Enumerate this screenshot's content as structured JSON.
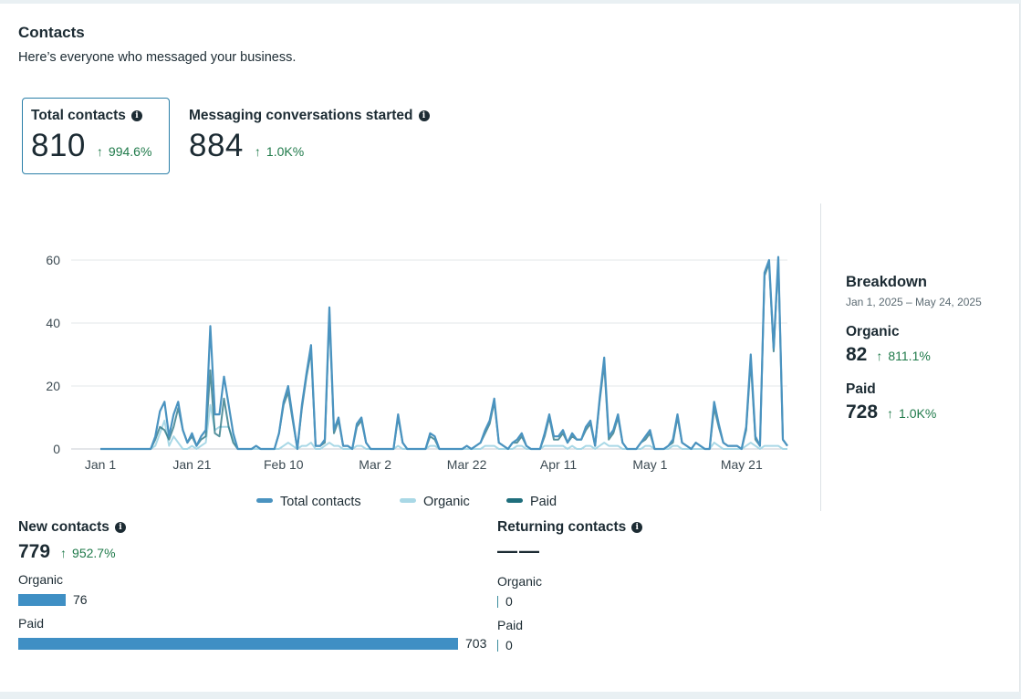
{
  "header": {
    "title": "Contacts",
    "subtitle": "Here’s everyone who messaged your business."
  },
  "metrics": {
    "total_contacts": {
      "label": "Total contacts",
      "value": "810",
      "delta": "994.6%"
    },
    "messaging": {
      "label": "Messaging conversations started",
      "value": "884",
      "delta": "1.0K%"
    }
  },
  "colors": {
    "total": "#4a93c0",
    "organic": "#a9d8e6",
    "paid": "#1f6e7c",
    "positive": "#1f7a4a"
  },
  "chart_data": {
    "type": "line",
    "x_tick_labels": [
      "Jan 1",
      "Jan 21",
      "Feb 10",
      "Mar 2",
      "Mar 22",
      "Apr 11",
      "May 1",
      "May 21"
    ],
    "x_tick_index": [
      0,
      20,
      40,
      60,
      80,
      100,
      120,
      140
    ],
    "y_ticks": [
      0,
      20,
      40,
      60
    ],
    "ylim": [
      0,
      60
    ],
    "x_start": "Jan 1",
    "x_end": "May 24",
    "legend_position": "bottom",
    "series": [
      {
        "name": "Total contacts",
        "key": "total",
        "values": [
          0,
          0,
          0,
          0,
          0,
          0,
          0,
          0,
          0,
          0,
          0,
          0,
          4,
          12,
          15,
          4,
          11,
          15,
          6,
          2,
          5,
          1,
          4,
          6,
          39,
          11,
          11,
          23,
          14,
          5,
          0,
          0,
          0,
          0,
          1,
          0,
          0,
          0,
          0,
          5,
          15,
          20,
          10,
          0,
          14,
          24,
          33,
          1,
          1,
          3,
          45,
          6,
          10,
          1,
          1,
          0,
          8,
          10,
          2,
          0,
          0,
          0,
          0,
          0,
          0,
          11,
          2,
          0,
          0,
          0,
          0,
          0,
          5,
          4,
          0,
          0,
          0,
          0,
          0,
          0,
          1,
          0,
          1,
          2,
          6,
          9,
          16,
          2,
          1,
          0,
          2,
          3,
          5,
          1,
          0,
          0,
          0,
          5,
          11,
          4,
          4,
          6,
          2,
          5,
          3,
          3,
          7,
          9,
          1,
          16,
          29,
          4,
          6,
          11,
          2,
          0,
          0,
          0,
          2,
          4,
          6,
          0,
          0,
          0,
          1,
          3,
          11,
          2,
          1,
          0,
          2,
          1,
          0,
          0,
          15,
          8,
          2,
          1,
          1,
          1,
          0,
          7,
          30,
          4,
          1,
          56,
          60,
          32,
          61,
          3,
          1
        ]
      },
      {
        "name": "Organic",
        "key": "organic",
        "values": [
          0,
          0,
          0,
          0,
          0,
          0,
          0,
          0,
          0,
          0,
          0,
          0,
          1,
          5,
          9,
          1,
          4,
          2,
          0,
          0,
          1,
          0,
          1,
          2,
          14,
          6,
          7,
          7,
          7,
          3,
          0,
          0,
          0,
          0,
          0,
          0,
          0,
          0,
          0,
          0,
          1,
          2,
          1,
          0,
          1,
          1,
          2,
          0,
          0,
          1,
          2,
          1,
          1,
          0,
          0,
          0,
          1,
          1,
          0,
          0,
          0,
          0,
          0,
          0,
          0,
          1,
          0,
          0,
          0,
          0,
          0,
          0,
          1,
          1,
          0,
          0,
          0,
          0,
          0,
          0,
          0,
          0,
          0,
          0,
          1,
          1,
          1,
          0,
          0,
          0,
          0,
          1,
          1,
          0,
          0,
          0,
          0,
          1,
          1,
          1,
          1,
          1,
          0,
          1,
          0,
          0,
          1,
          1,
          0,
          1,
          2,
          1,
          1,
          1,
          0,
          0,
          0,
          0,
          0,
          1,
          1,
          0,
          0,
          0,
          0,
          1,
          1,
          0,
          0,
          0,
          0,
          0,
          0,
          0,
          2,
          1,
          0,
          0,
          0,
          0,
          0,
          1,
          2,
          1,
          0,
          1,
          1,
          1,
          1,
          0,
          0
        ]
      },
      {
        "name": "Paid",
        "key": "paid",
        "values": [
          0,
          0,
          0,
          0,
          0,
          0,
          0,
          0,
          0,
          0,
          0,
          0,
          3,
          7,
          6,
          3,
          7,
          13,
          6,
          2,
          4,
          1,
          3,
          4,
          25,
          5,
          4,
          16,
          7,
          2,
          0,
          0,
          0,
          0,
          1,
          0,
          0,
          0,
          0,
          5,
          14,
          18,
          9,
          0,
          13,
          23,
          31,
          1,
          1,
          2,
          43,
          5,
          9,
          1,
          1,
          0,
          7,
          9,
          2,
          0,
          0,
          0,
          0,
          0,
          0,
          10,
          2,
          0,
          0,
          0,
          0,
          0,
          4,
          3,
          0,
          0,
          0,
          0,
          0,
          0,
          1,
          0,
          1,
          2,
          5,
          8,
          15,
          2,
          1,
          0,
          2,
          2,
          4,
          1,
          0,
          0,
          0,
          4,
          10,
          3,
          3,
          5,
          2,
          4,
          3,
          3,
          6,
          8,
          1,
          15,
          27,
          3,
          5,
          10,
          2,
          0,
          0,
          0,
          2,
          3,
          5,
          0,
          0,
          0,
          1,
          2,
          10,
          2,
          1,
          0,
          2,
          1,
          0,
          0,
          13,
          7,
          2,
          1,
          1,
          1,
          0,
          6,
          28,
          3,
          1,
          55,
          59,
          31,
          60,
          3,
          1
        ]
      }
    ]
  },
  "breakdown": {
    "title": "Breakdown",
    "range": "Jan 1, 2025 – May 24, 2025",
    "organic": {
      "label": "Organic",
      "value": "82",
      "delta": "811.1%"
    },
    "paid": {
      "label": "Paid",
      "value": "728",
      "delta": "1.0K%"
    }
  },
  "new_contacts": {
    "title": "New contacts",
    "value": "779",
    "delta": "952.7%",
    "max": 703,
    "organic": {
      "label": "Organic",
      "value": 76
    },
    "paid": {
      "label": "Paid",
      "value": 703
    }
  },
  "returning_contacts": {
    "title": "Returning contacts",
    "value": "——",
    "organic": {
      "label": "Organic",
      "value": "0"
    },
    "paid": {
      "label": "Paid",
      "value": "0"
    }
  }
}
